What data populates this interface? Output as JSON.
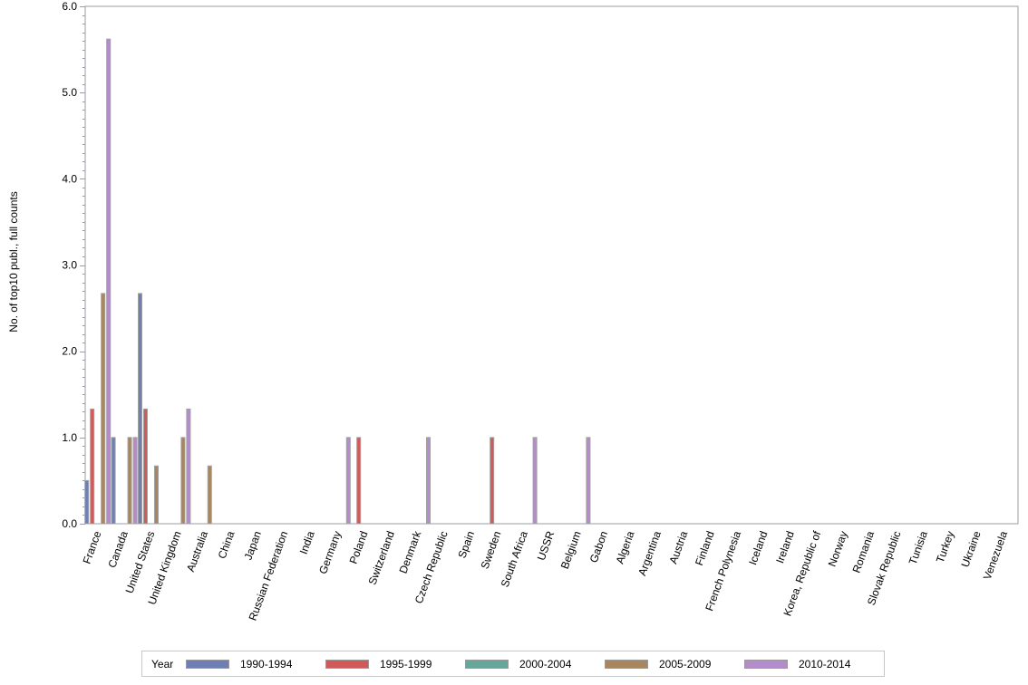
{
  "chart_data": {
    "type": "bar",
    "title": "",
    "xlabel": "",
    "ylabel": "No. of top10 publ., full counts",
    "ylim": [
      0,
      6
    ],
    "yticks": [
      "0.0",
      "1.0",
      "2.0",
      "3.0",
      "4.0",
      "5.0",
      "6.0"
    ],
    "grid": false,
    "legend_position": "bottom",
    "legend_title": "Year",
    "categories": [
      "France",
      "Canada",
      "United States",
      "United Kingdom",
      "Australia",
      "China",
      "Japan",
      "Russian Federation",
      "India",
      "Germany",
      "Poland",
      "Switzerland",
      "Denmark",
      "Czech Republic",
      "Spain",
      "Sweden",
      "South Africa",
      "USSR",
      "Belgium",
      "Gabon",
      "Algeria",
      "Argentina",
      "Austria",
      "Finland",
      "French Polynesia",
      "Iceland",
      "Ireland",
      "Korea, Republic of",
      "Norway",
      "Romania",
      "Slovak Republic",
      "Tunisia",
      "Turkey",
      "Ukraine",
      "Venezuela"
    ],
    "series": [
      {
        "name": "1990-1994",
        "color": "#6f7fb6",
        "values": [
          0.5,
          1.0,
          2.67,
          0,
          0,
          0,
          0,
          0,
          0,
          0,
          0,
          0,
          0,
          0,
          0,
          0,
          0,
          0,
          0,
          0,
          0,
          0,
          0,
          0,
          0,
          0,
          0,
          0,
          0,
          0,
          0,
          0,
          0,
          0,
          0
        ]
      },
      {
        "name": "1995-1999",
        "color": "#d05a5a",
        "values": [
          1.33,
          0,
          1.33,
          0,
          0,
          0,
          0,
          0,
          0,
          0,
          1.0,
          0,
          0,
          0,
          0,
          1.0,
          0,
          0,
          0,
          0,
          0,
          0,
          0,
          0,
          0,
          0,
          0,
          0,
          0,
          0,
          0,
          0,
          0,
          0,
          0
        ]
      },
      {
        "name": "2000-2004",
        "color": "#66a79c",
        "values": [
          0,
          0,
          0,
          0,
          0,
          0,
          0,
          0,
          0,
          0,
          0,
          0,
          0,
          0,
          0,
          0,
          0,
          0,
          0,
          0,
          0,
          0,
          0,
          0,
          0,
          0,
          0,
          0,
          0,
          0,
          0,
          0,
          0,
          0,
          0
        ]
      },
      {
        "name": "2005-2009",
        "color": "#a8865e",
        "values": [
          2.67,
          1.0,
          0.67,
          1.0,
          0.67,
          0,
          0,
          0,
          0,
          0,
          0,
          0,
          0,
          0,
          0,
          0,
          0,
          0,
          0,
          0,
          0,
          0,
          0,
          0,
          0,
          0,
          0,
          0,
          0,
          0,
          0,
          0,
          0,
          0,
          0
        ]
      },
      {
        "name": "2010-2014",
        "color": "#b48ccc",
        "values": [
          5.62,
          1.0,
          0,
          1.33,
          0,
          0,
          0,
          0,
          0,
          1.0,
          0,
          0,
          1.0,
          0,
          0,
          0,
          1.0,
          0,
          1.0,
          0,
          0,
          0,
          0,
          0,
          0,
          0,
          0,
          0,
          0,
          0,
          0,
          0,
          0,
          0,
          0
        ]
      }
    ]
  },
  "legend": {
    "title": "Year",
    "items": [
      {
        "label": "1990-1994",
        "color": "#6f7fb6"
      },
      {
        "label": "1995-1999",
        "color": "#d05a5a"
      },
      {
        "label": "2000-2004",
        "color": "#66a79c"
      },
      {
        "label": "2005-2009",
        "color": "#a8865e"
      },
      {
        "label": "2010-2014",
        "color": "#b48ccc"
      }
    ]
  }
}
